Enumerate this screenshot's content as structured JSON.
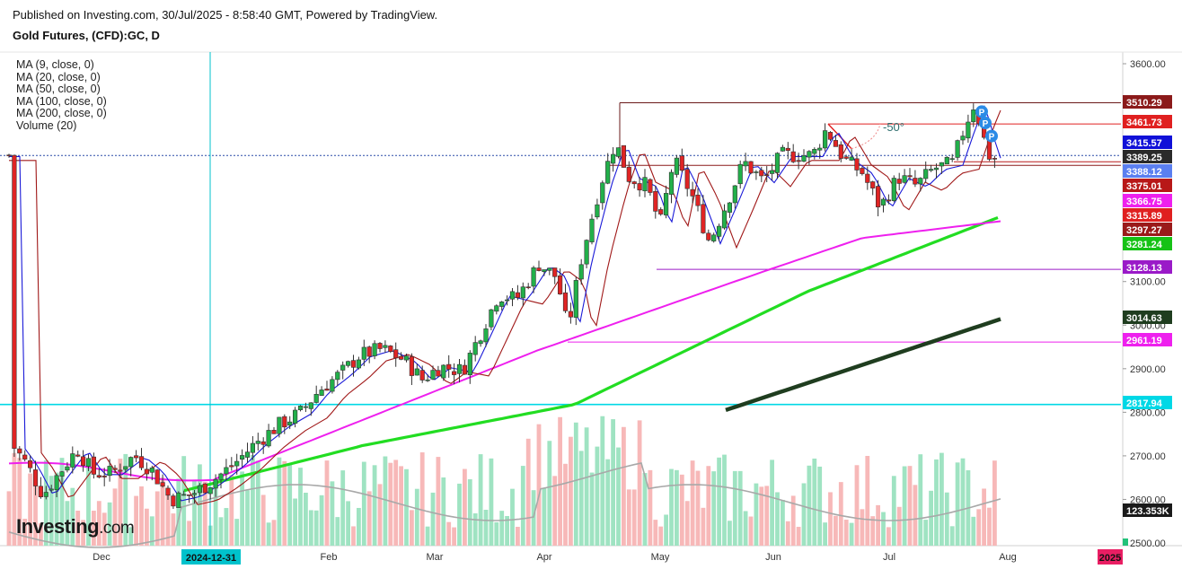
{
  "header": {
    "published": "Published on Investing.com, 30/Jul/2025 - 8:58:40 GMT, Powered by TradingView.",
    "title": "Gold Futures, (CFD):GC, D"
  },
  "legend": [
    "MA (9, close, 0)",
    "MA (20, close, 0)",
    "MA (50, close, 0)",
    "MA (100, close, 0)",
    "MA (200, close, 0)",
    "Volume (20)"
  ],
  "logo": {
    "main": "Investing",
    "suffix": ".com"
  },
  "annotation": "-50°",
  "chart_data": {
    "type": "candlestick",
    "price_ticks": [
      "3600.00",
      "3100.00",
      "3000.00",
      "2900.00",
      "2800.00",
      "2700.00",
      "2600.00",
      "2500.00"
    ],
    "ylim": [
      2470,
      3640
    ],
    "x_ticks": [
      "Dec",
      "Feb",
      "Mar",
      "Apr",
      "May",
      "Jun",
      "Jul",
      "Aug"
    ],
    "x_highlight_labels": [
      {
        "text": "2024-12-31",
        "color": "#00c2cc"
      },
      {
        "text": "2025",
        "color": "#e91e63"
      }
    ],
    "price_labels": [
      {
        "value": 3510.29,
        "color": "#8b1a1a",
        "text": "3510.29"
      },
      {
        "value": 3461.73,
        "color": "#e02020",
        "text": "3461.73"
      },
      {
        "value": 3415.57,
        "color": "#1010d8",
        "text": "3415.57"
      },
      {
        "value": 3389.25,
        "color": "#2a2a2a",
        "text": "3389.25"
      },
      {
        "value": 3388.12,
        "color": "#5b7ff0",
        "text": "3388.12"
      },
      {
        "value": 3375.01,
        "color": "#b81818",
        "text": "3375.01"
      },
      {
        "value": 3366.75,
        "color": "#ee20ee",
        "text": "3366.75"
      },
      {
        "value": 3315.89,
        "color": "#e02020",
        "text": "3315.89"
      },
      {
        "value": 3297.27,
        "color": "#9a1a1a",
        "text": "3297.27"
      },
      {
        "value": 3281.24,
        "color": "#16c216",
        "text": "3281.24"
      },
      {
        "value": 3128.13,
        "color": "#9a1ac8",
        "text": "3128.13"
      },
      {
        "value": 3014.63,
        "color": "#1f3d1f",
        "text": "3014.63"
      },
      {
        "value": 2961.19,
        "color": "#ee20ee",
        "text": "2961.19"
      },
      {
        "value": 2817.94,
        "color": "#00d8e6",
        "text": "2817.94"
      },
      {
        "value": "volume",
        "color": "#1a1a1a",
        "text": "123.353K"
      }
    ],
    "horizontal_lines": [
      {
        "value": 3510.29,
        "color": "#7a1a1a"
      },
      {
        "value": 3461.73,
        "color": "#e02020"
      },
      {
        "value": 3375.01,
        "color": "#b81818"
      },
      {
        "value": 3366.75,
        "color": "#8b1a1a"
      },
      {
        "value": 3128.13,
        "color": "#9a1ac8"
      },
      {
        "value": 2961.19,
        "color": "#ee20ee"
      },
      {
        "value": 2817.94,
        "color": "#00d8e6"
      }
    ],
    "series": [
      {
        "name": "MA (9, close, 0)",
        "color": "#1a1ad8"
      },
      {
        "name": "MA (20, close, 0)",
        "color": "#a01818"
      },
      {
        "name": "MA (50, close, 0)",
        "color": "#ee20ee"
      },
      {
        "name": "MA (100, close, 0)",
        "color": "#22dd22"
      },
      {
        "name": "MA (200, close, 0)",
        "color": "#1f3d1f"
      },
      {
        "name": "Volume (20)",
        "color": "#a0a0a0"
      }
    ],
    "colors": {
      "up": "#22b04a",
      "down": "#e02424",
      "vol_up": "#9fe3c2",
      "vol_down": "#f7b8b8"
    }
  }
}
